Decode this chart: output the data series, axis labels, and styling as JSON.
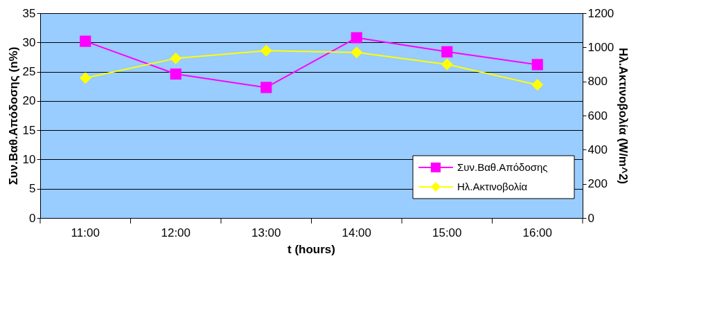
{
  "chart_data": {
    "type": "line",
    "xlabel": "t (hours)",
    "ylabel": "Συν.Βαθ.Απόδοσης (n%)",
    "y2label": "Ηλ.Ακτινοβολία (W/m^2)",
    "categories": [
      "11:00",
      "12:00",
      "13:00",
      "14:00",
      "15:00",
      "16:00"
    ],
    "series": [
      {
        "name": "Συν.Βαθ.Απόδοσης",
        "color": "#ff00ff",
        "marker": "square",
        "values": [
          30.2,
          24.6,
          22.3,
          30.8,
          28.4,
          26.2
        ]
      },
      {
        "name": "Ηλ.Ακτινοβολία",
        "color": "#ffff00",
        "marker": "diamond",
        "axis": "y2",
        "values": [
          820,
          935,
          980,
          970,
          900,
          780
        ]
      }
    ],
    "ylim": [
      0,
      35
    ],
    "yticks": [
      0,
      5,
      10,
      15,
      20,
      25,
      30,
      35
    ],
    "y2lim": [
      0,
      1200
    ],
    "y2ticks": [
      0,
      200,
      400,
      600,
      800,
      1000,
      1200
    ],
    "grid": "y",
    "legend": "bottom right"
  }
}
